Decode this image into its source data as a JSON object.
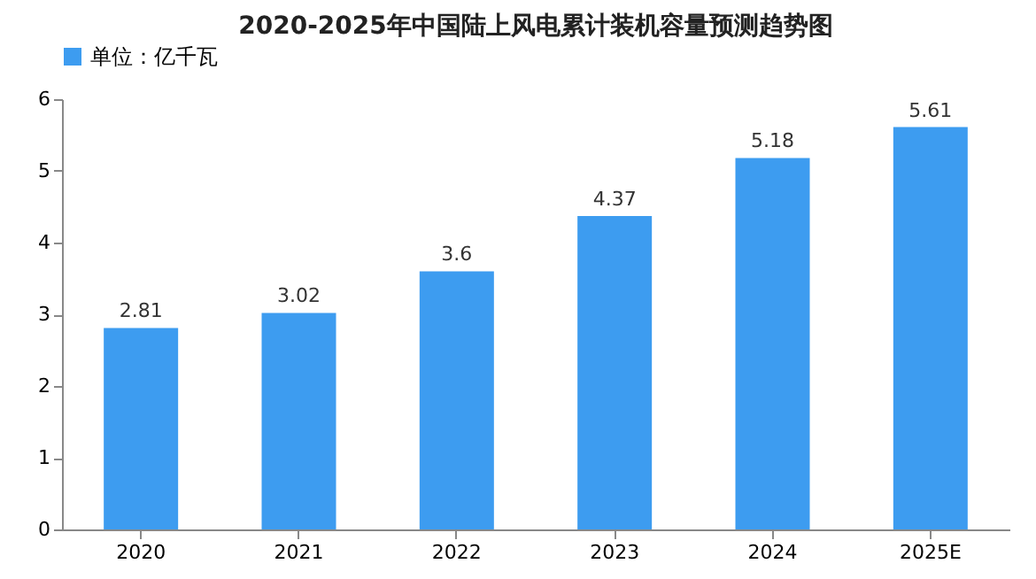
{
  "chart_data": {
    "type": "bar",
    "title": "2020-2025年中国陆上风电累计装机容量预测趋势图",
    "categories": [
      "2020",
      "2021",
      "2022",
      "2023",
      "2024",
      "2025E"
    ],
    "series": [
      {
        "name": "单位：亿千瓦",
        "color": "#3d9cf0",
        "values": [
          2.81,
          3.02,
          3.6,
          4.37,
          5.18,
          5.61
        ]
      }
    ],
    "ylim": [
      0,
      6
    ],
    "yticks": [
      0,
      1,
      2,
      3,
      4,
      5,
      6
    ],
    "grid": false,
    "legend": "top",
    "data_labels": true
  }
}
